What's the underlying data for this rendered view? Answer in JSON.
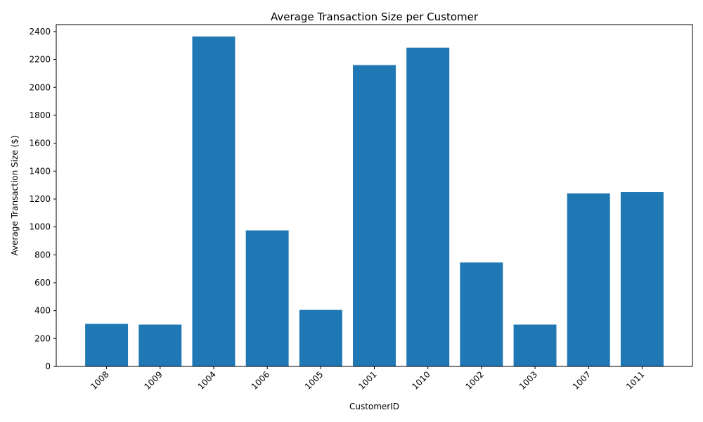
{
  "chart_data": {
    "type": "bar",
    "title": "Average Transaction Size per Customer",
    "xlabel": "CustomerID",
    "ylabel": "Average Transaction Size ($)",
    "categories": [
      "1008",
      "1009",
      "1004",
      "1006",
      "1005",
      "1001",
      "1010",
      "1002",
      "1003",
      "1007",
      "1011"
    ],
    "values": [
      305,
      300,
      2365,
      975,
      405,
      2160,
      2285,
      745,
      300,
      1240,
      1250
    ],
    "ylim": [
      0,
      2450
    ],
    "yticks": [
      0,
      200,
      400,
      600,
      800,
      1000,
      1200,
      1400,
      1600,
      1800,
      2000,
      2200,
      2400
    ],
    "bar_color": "#1f77b4",
    "grid": false,
    "x_tick_rotation_deg": -45
  }
}
